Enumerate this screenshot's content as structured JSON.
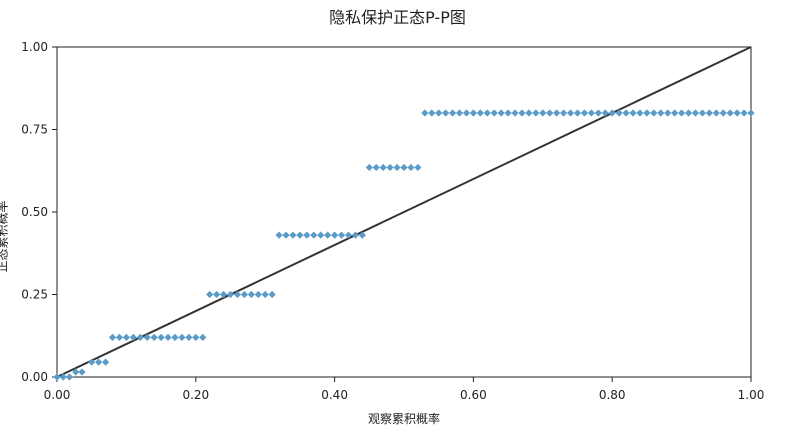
{
  "chart_data": {
    "type": "scatter",
    "title": "隐私保护正态P-P图",
    "xlabel": "观察累积概率",
    "ylabel": "正态累积概率",
    "xlim": [
      0,
      1
    ],
    "ylim": [
      0,
      1
    ],
    "xticks": [
      "0.00",
      "0.20",
      "0.40",
      "0.60",
      "0.80",
      "1.00"
    ],
    "yticks": [
      "0.00",
      "0.25",
      "0.50",
      "0.75",
      "1.00"
    ],
    "grid": false,
    "legend": "none",
    "colors": {
      "points": "#5b9bc8",
      "reference_line": "#333333",
      "axis": "#222222"
    },
    "reference_line": {
      "from": [
        0,
        0
      ],
      "to": [
        1,
        1
      ]
    },
    "series": [
      {
        "groups": [
          {
            "y": 0.0,
            "x": [
              0.0,
              0.009,
              0.018
            ]
          },
          {
            "y": 0.015,
            "x": [
              0.027,
              0.036
            ]
          },
          {
            "y": 0.045,
            "x": [
              0.05,
              0.06,
              0.07
            ]
          },
          {
            "y": 0.12,
            "x": [
              0.08,
              0.09,
              0.1,
              0.11,
              0.12,
              0.13,
              0.14,
              0.15,
              0.16,
              0.17,
              0.18,
              0.19,
              0.2,
              0.21
            ]
          },
          {
            "y": 0.25,
            "x": [
              0.22,
              0.23,
              0.24,
              0.25,
              0.26,
              0.27,
              0.28,
              0.29,
              0.3,
              0.31
            ]
          },
          {
            "y": 0.43,
            "x": [
              0.32,
              0.33,
              0.34,
              0.35,
              0.36,
              0.37,
              0.38,
              0.39,
              0.4,
              0.41,
              0.42,
              0.43,
              0.44
            ]
          },
          {
            "y": 0.635,
            "x": [
              0.45,
              0.46,
              0.47,
              0.48,
              0.49,
              0.5,
              0.51,
              0.52
            ]
          },
          {
            "y": 0.8,
            "x": [
              0.53,
              0.54,
              0.55,
              0.56,
              0.57,
              0.58,
              0.59,
              0.6,
              0.61,
              0.62,
              0.63,
              0.64,
              0.65,
              0.66,
              0.67,
              0.68,
              0.69,
              0.7,
              0.71,
              0.72,
              0.73,
              0.74,
              0.75,
              0.76,
              0.77,
              0.78,
              0.79,
              0.8,
              0.81,
              0.82,
              0.83,
              0.84,
              0.85,
              0.86,
              0.87,
              0.88,
              0.89,
              0.9,
              0.91,
              0.92,
              0.93,
              0.94,
              0.95,
              0.96,
              0.97,
              0.98,
              0.99,
              1.0
            ]
          }
        ]
      }
    ]
  }
}
